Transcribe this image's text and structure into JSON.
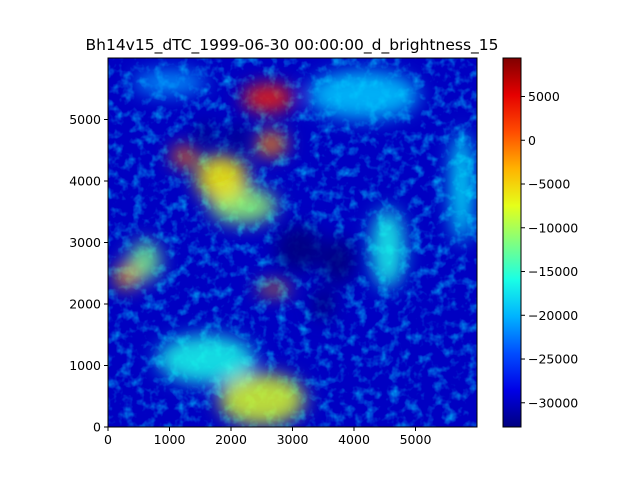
{
  "chart_data": {
    "type": "heatmap",
    "title": "Bh14v15_dTC_1999-06-30 00:00:00_d_brightness_15",
    "xlabel": "",
    "ylabel": "",
    "xlim": [
      0,
      6000
    ],
    "ylim": [
      0,
      6000
    ],
    "x_ticks": [
      {
        "value": 0,
        "label": "0"
      },
      {
        "value": 1000,
        "label": "1000"
      },
      {
        "value": 2000,
        "label": "2000"
      },
      {
        "value": 3000,
        "label": "3000"
      },
      {
        "value": 4000,
        "label": "4000"
      },
      {
        "value": 5000,
        "label": "5000"
      }
    ],
    "y_ticks": [
      {
        "value": 0,
        "label": "0"
      },
      {
        "value": 1000,
        "label": "1000"
      },
      {
        "value": 2000,
        "label": "2000"
      },
      {
        "value": 3000,
        "label": "3000"
      },
      {
        "value": 4000,
        "label": "4000"
      },
      {
        "value": 5000,
        "label": "5000"
      }
    ],
    "colormap": "jet",
    "colorbar": {
      "range": [
        -32768,
        9400
      ],
      "ticks": [
        {
          "value": 5000,
          "label": "5000"
        },
        {
          "value": 0,
          "label": "0"
        },
        {
          "value": -5000,
          "label": "−5000"
        },
        {
          "value": -10000,
          "label": "−10000"
        },
        {
          "value": -15000,
          "label": "−15000"
        },
        {
          "value": -20000,
          "label": "−20000"
        },
        {
          "value": -25000,
          "label": "−25000"
        },
        {
          "value": -30000,
          "label": "−30000"
        }
      ]
    },
    "background_value": -30000,
    "hotspots": [
      {
        "x": 2600,
        "y": 5350,
        "rx": 420,
        "ry": 230,
        "value": 2500
      },
      {
        "x": 2650,
        "y": 4600,
        "rx": 260,
        "ry": 200,
        "value": -1500
      },
      {
        "x": 1250,
        "y": 4400,
        "rx": 220,
        "ry": 170,
        "value": -500
      },
      {
        "x": 1850,
        "y": 4050,
        "rx": 420,
        "ry": 380,
        "value": -6000
      },
      {
        "x": 2200,
        "y": 3600,
        "rx": 550,
        "ry": 300,
        "value": -11000
      },
      {
        "x": 300,
        "y": 2450,
        "rx": 200,
        "ry": 200,
        "value": -3000
      },
      {
        "x": 600,
        "y": 2700,
        "rx": 260,
        "ry": 320,
        "value": -12000
      },
      {
        "x": 2700,
        "y": 2250,
        "rx": 280,
        "ry": 90,
        "value": -2500
      },
      {
        "x": 2500,
        "y": 450,
        "rx": 700,
        "ry": 420,
        "value": -8000
      },
      {
        "x": 1600,
        "y": 1100,
        "rx": 800,
        "ry": 400,
        "value": -16000
      },
      {
        "x": 4550,
        "y": 2900,
        "rx": 280,
        "ry": 650,
        "value": -16000
      },
      {
        "x": 4150,
        "y": 5400,
        "rx": 900,
        "ry": 400,
        "value": -19000
      },
      {
        "x": 5750,
        "y": 3900,
        "rx": 180,
        "ry": 900,
        "value": -17000
      },
      {
        "x": 1000,
        "y": 5600,
        "rx": 600,
        "ry": 200,
        "value": -21000
      }
    ],
    "dark_patches": [
      {
        "x": 3100,
        "y": 2900,
        "rx": 380,
        "ry": 380
      },
      {
        "x": 3750,
        "y": 2700,
        "rx": 280,
        "ry": 380
      },
      {
        "x": 1580,
        "y": 4750,
        "rx": 160,
        "ry": 200
      },
      {
        "x": 2100,
        "y": 4700,
        "rx": 150,
        "ry": 250
      },
      {
        "x": 3500,
        "y": 2000,
        "rx": 180,
        "ry": 260
      }
    ]
  }
}
